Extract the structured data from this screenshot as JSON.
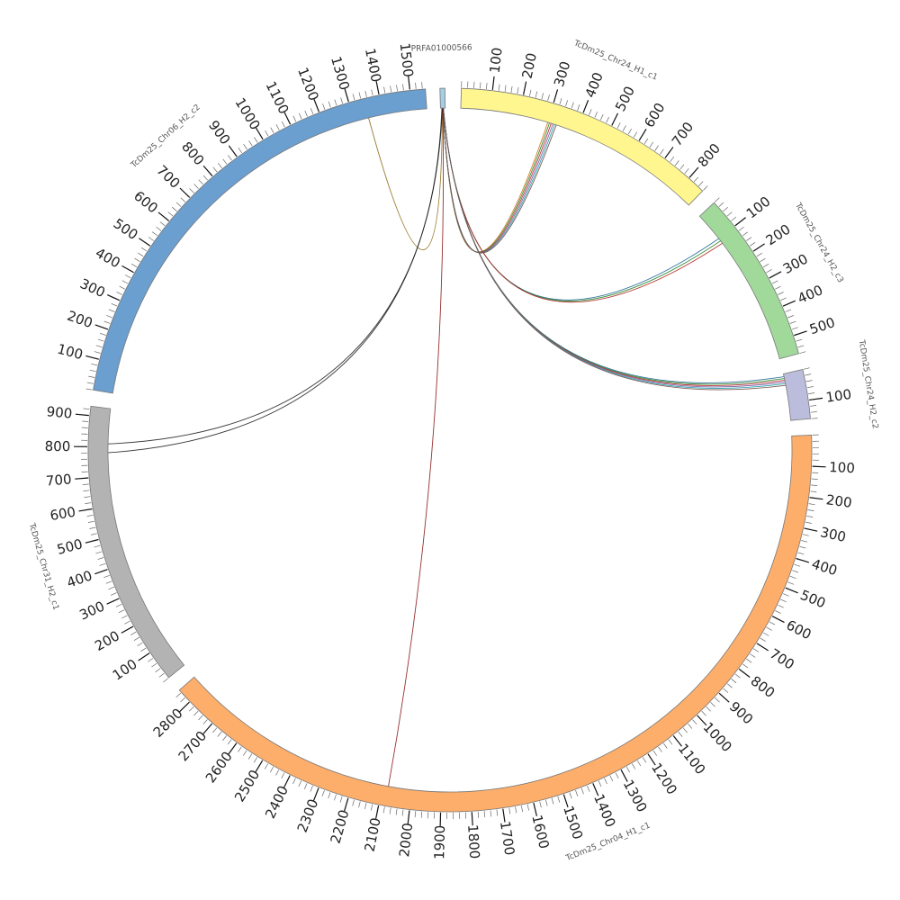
{
  "segments": [
    {
      "id": "PRFA01000566",
      "name": "PRFA01000566",
      "length": 10,
      "color": "#a6cee3",
      "ticks": []
    },
    {
      "id": "chr24_h1_c1",
      "name": "TcDm25_Chr24_H1_c1",
      "length": 860,
      "color": "#fff68f",
      "ticks": [
        100,
        200,
        300,
        400,
        500,
        600,
        700,
        800
      ]
    },
    {
      "id": "chr24_h2_c3",
      "name": "TcDm25_Chr24_H2_c3",
      "length": 560,
      "color": "#a1d99b",
      "ticks": [
        100,
        200,
        300,
        400,
        500
      ]
    },
    {
      "id": "chr24_h2_c2",
      "name": "TcDm25_Chr24_H2_c2",
      "length": 160,
      "color": "#bcbddc",
      "ticks": [
        100
      ]
    },
    {
      "id": "chr04_h1_c1",
      "name": "TcDm25_Chr04_H1_c1",
      "length": 2850,
      "color": "#fdae6b",
      "ticks": [
        100,
        200,
        300,
        400,
        500,
        600,
        700,
        800,
        900,
        1000,
        1100,
        1200,
        1300,
        1400,
        1500,
        1600,
        1700,
        1800,
        1900,
        2000,
        2100,
        2200,
        2300,
        2400,
        2500,
        2600,
        2700,
        2800
      ]
    },
    {
      "id": "chr31_h2_c1",
      "name": "TcDm25_Chr31_H2_c1",
      "length": 930,
      "color": "#b3b3b3",
      "ticks": [
        100,
        200,
        300,
        400,
        500,
        600,
        700,
        800,
        900
      ]
    },
    {
      "id": "chr06_h2_c2",
      "name": "TcDm25_Chr06_H2_c2",
      "length": 1550,
      "color": "#6a9fd0",
      "ticks": [
        100,
        200,
        300,
        400,
        500,
        600,
        700,
        800,
        900,
        1000,
        1100,
        1200,
        1300,
        1400,
        1500
      ]
    }
  ],
  "links": [
    {
      "from": "PRFA01000566",
      "from_pos": 5,
      "to": "chr24_h1_c1",
      "to_pos": 300,
      "to_end": 330,
      "color": "#ff7f0e",
      "count": 6
    },
    {
      "from": "PRFA01000566",
      "from_pos": 6,
      "to": "chr24_h2_c3",
      "to_pos": 100,
      "to_end": 120,
      "color": "#1f77b4",
      "count": 3
    },
    {
      "from": "PRFA01000566",
      "from_pos": 6,
      "to": "chr24_h2_c2",
      "to_pos": 10,
      "to_end": 40,
      "color": "#2c7fb8",
      "count": 6
    },
    {
      "from": "PRFA01000566",
      "from_pos": 4,
      "to": "chr06_h2_c2",
      "to_pos": 1350,
      "to_end": 1350,
      "color": "#8b6914",
      "count": 1
    },
    {
      "from": "PRFA01000566",
      "from_pos": 4,
      "to": "chr31_h2_c1",
      "to_pos": 810,
      "to_end": 810,
      "color": "#222222",
      "count": 1
    },
    {
      "from": "PRFA01000566",
      "from_pos": 3,
      "to": "chr31_h2_c1",
      "to_pos": 780,
      "to_end": 780,
      "color": "#222222",
      "count": 1
    },
    {
      "from": "PRFA01000566",
      "from_pos": 5,
      "to": "chr04_h1_c1",
      "to_pos": 2080,
      "to_end": 2080,
      "color": "#8b1a1a",
      "count": 1
    }
  ]
}
